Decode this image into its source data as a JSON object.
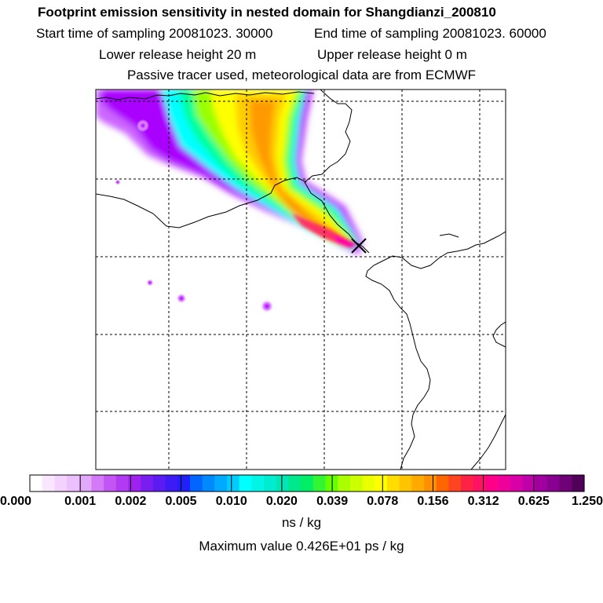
{
  "header": {
    "title": "Footprint emission sensitivity in nested domain for Shangdianzi_200810",
    "start_label": "Start time of sampling 20081023. 30000",
    "end_label": "End time of sampling 20081023. 60000",
    "lower_label": "Lower release height   20 m",
    "upper_label": "Upper release height    0 m",
    "tracer_label": "Passive tracer used, meteorological data are from ECMWF"
  },
  "map": {
    "receptor_marker": "x-marker-icon",
    "plume_colors": [
      "#cc66ff",
      "#aa00ff",
      "#00ffff",
      "#00ff99",
      "#99ff00",
      "#ffff00",
      "#ffcc00",
      "#ff9900",
      "#ff3366",
      "#ff00aa",
      "#220033"
    ]
  },
  "colorbar": {
    "colors": [
      "#ffffff",
      "#fbe6ff",
      "#f4d2fe",
      "#ecc0fd",
      "#e1a8fb",
      "#d47af8",
      "#c455f5",
      "#b13af2",
      "#a020f0",
      "#7a1ef0",
      "#5a1cf3",
      "#3d1bf6",
      "#2020f8",
      "#0066ff",
      "#0088ff",
      "#00aaff",
      "#00ccff",
      "#00ffff",
      "#00f5e6",
      "#00ecd0",
      "#00e6b4",
      "#00e88c",
      "#00ee66",
      "#33f533",
      "#66ff00",
      "#aaff00",
      "#ccff00",
      "#ebff00",
      "#ffff00",
      "#ffdd00",
      "#ffc400",
      "#ffaa00",
      "#ff9000",
      "#ff6600",
      "#ff4422",
      "#ff2244",
      "#ff1166",
      "#ff0088",
      "#f0009a",
      "#d800a6",
      "#c000a8",
      "#a000a0",
      "#880090",
      "#6e0078",
      "#500058"
    ],
    "ticks": [
      "0.000",
      "0.001",
      "0.002",
      "0.005",
      "0.010",
      "0.020",
      "0.039",
      "0.078",
      "0.156",
      "0.312",
      "0.625",
      "1.250"
    ],
    "unit": "ns / kg"
  },
  "footer": {
    "maximum": "Maximum value  0.426E+01 ps / kg"
  }
}
